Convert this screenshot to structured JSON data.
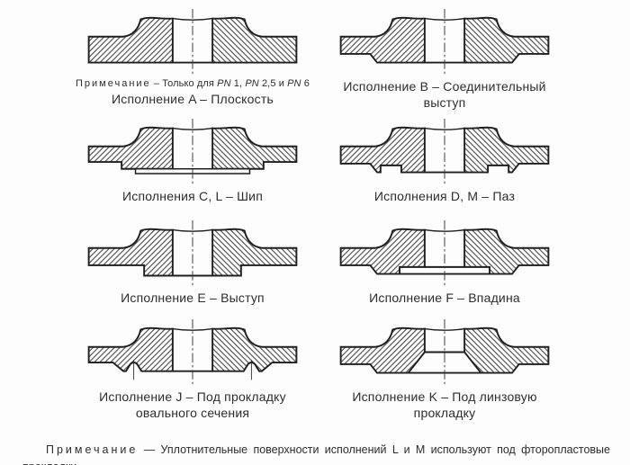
{
  "figures": [
    {
      "key": "A",
      "caption": "Исполнение A – Плоскость",
      "note": {
        "label": "Примечание",
        "parts": [
          {
            "t": " – Только для "
          },
          {
            "t": "PN",
            "i": true
          },
          {
            "t": " 1, "
          },
          {
            "t": "PN",
            "i": true
          },
          {
            "t": " 2,5 и "
          },
          {
            "t": "PN",
            "i": true
          },
          {
            "t": " 6"
          }
        ]
      }
    },
    {
      "key": "B",
      "caption": "Исполнение B – Соединительный выступ"
    },
    {
      "key": "CL",
      "caption": "Исполнения C, L – Шип"
    },
    {
      "key": "DM",
      "caption": "Исполнения D, M – Паз"
    },
    {
      "key": "E",
      "caption": "Исполнение E – Выступ"
    },
    {
      "key": "F",
      "caption": "Исполнение F – Впадина"
    },
    {
      "key": "J",
      "caption": "Исполнение J – Под прокладку",
      "caption2": "овального сечения"
    },
    {
      "key": "K",
      "caption": "Исполнение K – Под линзовую",
      "caption2": "прокладку"
    }
  ],
  "footnote": {
    "label": "Примечание",
    "text": "— Уплотнительные поверхности исполнений L и M используют под фторопластовые прокладки."
  },
  "colors": {
    "line": "#1f1f1f",
    "hatch": "#3c3c3c",
    "background": "#fdfdfd"
  }
}
